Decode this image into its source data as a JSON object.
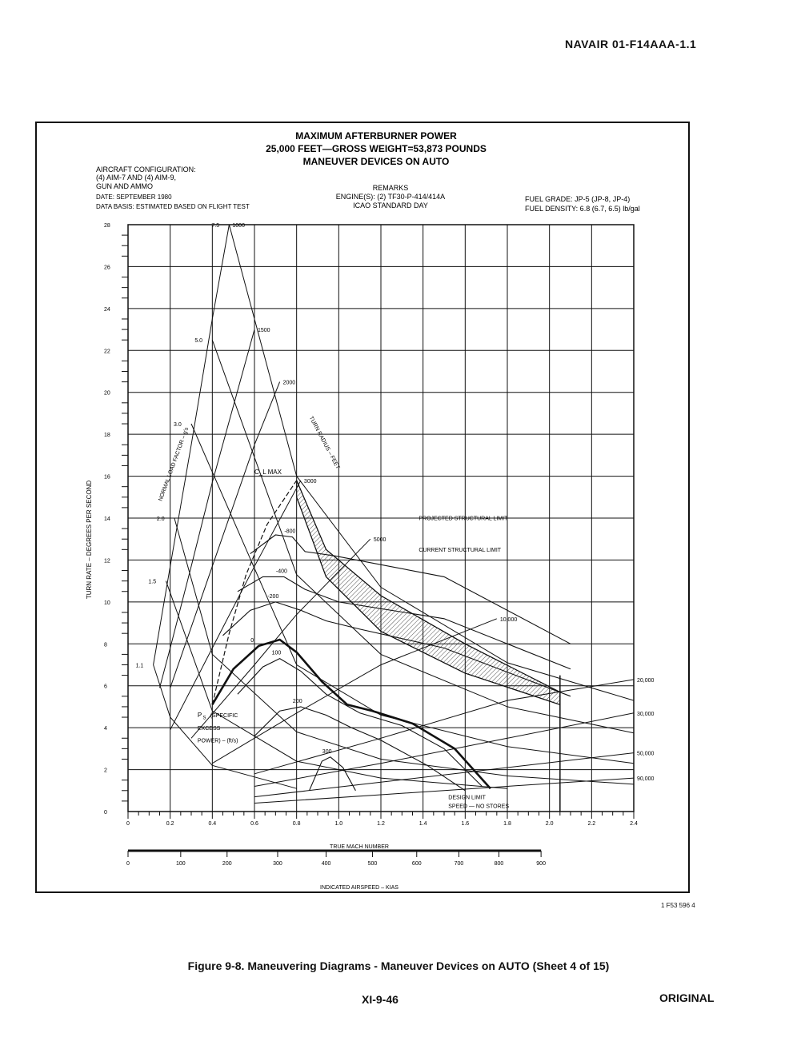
{
  "document": {
    "doc_id": "NAVAIR 01-F14AAA-1.1",
    "drawing_id": "1 F53 596 4",
    "figure_caption": "Figure 9-8. Maneuvering Diagrams - Maneuver Devices on AUTO (Sheet 4 of 15)",
    "page_number": "XI-9-46",
    "status": "ORIGINAL"
  },
  "chart_data": {
    "type": "line",
    "title": [
      "MAXIMUM AFTERBURNER POWER",
      "25,000 FEET—GROSS WEIGHT=53,873 POUNDS",
      "MANEUVER DEVICES ON AUTO"
    ],
    "config": {
      "aircraft": [
        "AIRCRAFT CONFIGURATION:",
        "(4) AIM-7 AND (4) AIM-9,",
        "GUN AND AMMO"
      ],
      "date": "DATE: SEPTEMBER 1980",
      "data_basis": "DATA BASIS: ESTIMATED BASED ON FLIGHT TEST",
      "remarks": [
        "REMARKS",
        "ENGINE(S): (2) TF30-P-414/414A",
        "ICAO STANDARD DAY"
      ],
      "fuel": [
        "FUEL GRADE: JP-5 (JP-8, JP-4)",
        "FUEL DENSITY: 6.8 (6.7, 6.5) lb/gal"
      ]
    },
    "xlabel": "TRUE MACH NUMBER",
    "ylabel": "TURN RATE – DEGREES PER SECOND",
    "x2label": "INDICATED AIRSPEED – KIAS",
    "xlim": [
      0,
      2.4
    ],
    "ylim": [
      0,
      28
    ],
    "x_ticks": [
      "0",
      "0.2",
      "0.4",
      "0.6",
      "0.8",
      "1.0",
      "1.2",
      "1.4",
      "1.6",
      "1.8",
      "2.0",
      "2.2",
      "2.4"
    ],
    "y_ticks": [
      "0",
      "2",
      "4",
      "6",
      "8",
      "10",
      "12",
      "14",
      "16",
      "18",
      "20",
      "22",
      "24",
      "26",
      "28"
    ],
    "kias_ticks": [
      {
        "kias": 0,
        "mach": 0,
        "label": "0"
      },
      {
        "kias": 100,
        "mach": 0.25,
        "label": "100"
      },
      {
        "kias": 200,
        "mach": 0.47,
        "label": "200"
      },
      {
        "kias": 300,
        "mach": 0.71,
        "label": "300"
      },
      {
        "kias": 400,
        "mach": 0.94,
        "label": "400"
      },
      {
        "kias": 500,
        "mach": 1.16,
        "label": "500"
      },
      {
        "kias": 600,
        "mach": 1.37,
        "label": "600"
      },
      {
        "kias": 700,
        "mach": 1.57,
        "label": "700"
      },
      {
        "kias": 800,
        "mach": 1.76,
        "label": "800"
      },
      {
        "kias": 900,
        "mach": 1.96,
        "label": "900"
      }
    ],
    "load_factor_lines": [
      {
        "label": "7.5",
        "points": [
          [
            0.48,
            28
          ],
          [
            0.8,
            16
          ],
          [
            1.2,
            10.7
          ],
          [
            1.8,
            7.1
          ],
          [
            2.4,
            5.3
          ]
        ]
      },
      {
        "label": "5.0",
        "points": [
          [
            0.4,
            22.5
          ],
          [
            0.8,
            11.3
          ],
          [
            1.2,
            7.5
          ],
          [
            1.8,
            5.0
          ],
          [
            2.4,
            3.75
          ]
        ]
      },
      {
        "label": "3.0",
        "points": [
          [
            0.3,
            18.5
          ],
          [
            0.8,
            7.0
          ],
          [
            1.2,
            4.6
          ],
          [
            1.8,
            3.1
          ],
          [
            2.4,
            2.3
          ]
        ]
      },
      {
        "label": "2.0",
        "points": [
          [
            0.22,
            14.0
          ],
          [
            0.4,
            7.5
          ],
          [
            0.8,
            3.8
          ],
          [
            1.2,
            2.5
          ],
          [
            1.8,
            1.7
          ],
          [
            2.4,
            1.3
          ]
        ]
      },
      {
        "label": "1.5",
        "points": [
          [
            0.18,
            11.0
          ],
          [
            0.4,
            4.8
          ],
          [
            0.8,
            2.4
          ],
          [
            1.2,
            1.6
          ],
          [
            1.8,
            1.1
          ]
        ]
      },
      {
        "label": "1.1",
        "points": [
          [
            0.12,
            7.0
          ],
          [
            0.2,
            4.5
          ],
          [
            0.4,
            2.2
          ],
          [
            0.8,
            1.1
          ]
        ]
      }
    ],
    "turn_radius_lines": [
      {
        "label": "1000",
        "points": [
          [
            0.48,
            28
          ],
          [
            0.4,
            23.5
          ],
          [
            0.3,
            17.5
          ],
          [
            0.2,
            11.7
          ],
          [
            0.12,
            7.0
          ]
        ]
      },
      {
        "label": "1500",
        "points": [
          [
            0.6,
            23.0
          ],
          [
            0.4,
            15.7
          ],
          [
            0.3,
            11.7
          ],
          [
            0.2,
            7.8
          ],
          [
            0.15,
            5.9
          ]
        ]
      },
      {
        "label": "2000",
        "points": [
          [
            0.72,
            20.5
          ],
          [
            0.6,
            17.5
          ],
          [
            0.4,
            11.7
          ],
          [
            0.2,
            5.9
          ]
        ]
      },
      {
        "label": "3000",
        "points": [
          [
            0.82,
            15.8
          ],
          [
            0.6,
            11.7
          ],
          [
            0.4,
            7.8
          ],
          [
            0.2,
            3.9
          ]
        ]
      },
      {
        "label": "5000",
        "points": [
          [
            1.15,
            13.0
          ],
          [
            0.8,
            9.4
          ],
          [
            0.6,
            7.0
          ],
          [
            0.3,
            3.5
          ]
        ]
      },
      {
        "label": "10,000",
        "points": [
          [
            1.75,
            9.2
          ],
          [
            1.2,
            7.0
          ],
          [
            0.8,
            4.7
          ],
          [
            0.4,
            2.3
          ]
        ]
      },
      {
        "label": "20,000",
        "points": [
          [
            2.4,
            6.3
          ],
          [
            1.8,
            5.3
          ],
          [
            1.2,
            3.5
          ],
          [
            0.6,
            1.8
          ]
        ]
      },
      {
        "label": "30,000",
        "points": [
          [
            2.4,
            4.7
          ],
          [
            1.8,
            3.5
          ],
          [
            1.2,
            2.3
          ],
          [
            0.6,
            1.2
          ]
        ]
      },
      {
        "label": "50,000",
        "points": [
          [
            2.4,
            2.8
          ],
          [
            1.8,
            2.1
          ],
          [
            1.2,
            1.4
          ],
          [
            0.6,
            0.7
          ]
        ]
      },
      {
        "label": "90,000",
        "points": [
          [
            2.4,
            1.6
          ],
          [
            1.8,
            1.2
          ],
          [
            1.2,
            0.8
          ],
          [
            0.6,
            0.4
          ]
        ]
      }
    ],
    "ps_contours": [
      {
        "label": "-800",
        "points": [
          [
            0.58,
            12.3
          ],
          [
            0.7,
            13.2
          ],
          [
            0.78,
            13.1
          ],
          [
            0.84,
            12.4
          ],
          [
            0.98,
            12.2
          ],
          [
            1.5,
            11.2
          ],
          [
            2.1,
            8.0
          ]
        ]
      },
      {
        "label": "-400",
        "points": [
          [
            0.52,
            10.5
          ],
          [
            0.64,
            11.2
          ],
          [
            0.74,
            11.2
          ],
          [
            0.84,
            10.6
          ],
          [
            1.0,
            10.0
          ],
          [
            1.5,
            9.2
          ],
          [
            2.1,
            6.8
          ]
        ]
      },
      {
        "label": "-200",
        "points": [
          [
            0.45,
            8.4
          ],
          [
            0.58,
            9.6
          ],
          [
            0.7,
            10.0
          ],
          [
            0.82,
            9.6
          ],
          [
            0.94,
            9.1
          ],
          [
            1.1,
            8.7
          ],
          [
            1.5,
            7.8
          ],
          [
            2.1,
            5.5
          ]
        ]
      },
      {
        "label": "0",
        "points": [
          [
            0.4,
            5.1
          ],
          [
            0.5,
            6.8
          ],
          [
            0.62,
            7.9
          ],
          [
            0.72,
            8.2
          ],
          [
            0.8,
            7.6
          ],
          [
            0.92,
            6.2
          ],
          [
            1.04,
            5.1
          ],
          [
            1.16,
            4.8
          ],
          [
            1.35,
            4.2
          ],
          [
            1.55,
            3.0
          ],
          [
            1.72,
            1.1
          ]
        ]
      },
      {
        "label": "100",
        "points": [
          [
            0.52,
            5.6
          ],
          [
            0.64,
            6.9
          ],
          [
            0.72,
            7.3
          ],
          [
            0.82,
            6.7
          ],
          [
            0.94,
            5.6
          ],
          [
            1.1,
            4.7
          ],
          [
            1.3,
            4.1
          ],
          [
            1.5,
            3.0
          ],
          [
            1.68,
            1.2
          ]
        ]
      },
      {
        "label": "200",
        "points": [
          [
            0.6,
            3.6
          ],
          [
            0.72,
            4.8
          ],
          [
            0.82,
            5.0
          ],
          [
            0.94,
            4.6
          ],
          [
            1.06,
            4.0
          ],
          [
            1.2,
            3.4
          ],
          [
            1.42,
            2.2
          ],
          [
            1.6,
            1.0
          ]
        ]
      },
      {
        "label": "300",
        "points": [
          [
            0.86,
            1.0
          ],
          [
            0.92,
            2.4
          ],
          [
            0.96,
            2.6
          ],
          [
            1.02,
            2.1
          ],
          [
            1.08,
            1.0
          ]
        ]
      }
    ],
    "cl_max_line": {
      "label": "C_L MAX",
      "points": [
        [
          0.4,
          5.1
        ],
        [
          0.48,
          8.5
        ],
        [
          0.56,
          11.3
        ],
        [
          0.66,
          13.7
        ],
        [
          0.8,
          15.8
        ]
      ]
    },
    "structural_limits": {
      "projected_label": "PROJECTED STRUCTURAL LIMIT",
      "current_label": "CURRENT STRUCTURAL LIMIT",
      "projected": [
        [
          0.8,
          15.8
        ],
        [
          0.94,
          12.5
        ],
        [
          1.2,
          10.3
        ],
        [
          1.6,
          8.0
        ],
        [
          2.05,
          5.7
        ]
      ],
      "current": [
        [
          0.8,
          15.0
        ],
        [
          0.94,
          11.2
        ],
        [
          1.2,
          8.6
        ],
        [
          1.6,
          6.6
        ],
        [
          2.05,
          5.1
        ]
      ]
    },
    "design_limit": {
      "label": [
        "DESIGN LIMIT",
        "SPEED — NO STORES"
      ],
      "mach": 2.05
    },
    "annotations": {
      "normal_load_factor": "NORMAL LOAD FACTOR – g's",
      "turn_radius": "TURN RADIUS – FEET",
      "ps": "P",
      "ps_sub": "S",
      "ps_specific": [
        "(SPECIFIC",
        "EXCESS",
        "POWER) – (ft/s)"
      ]
    }
  }
}
